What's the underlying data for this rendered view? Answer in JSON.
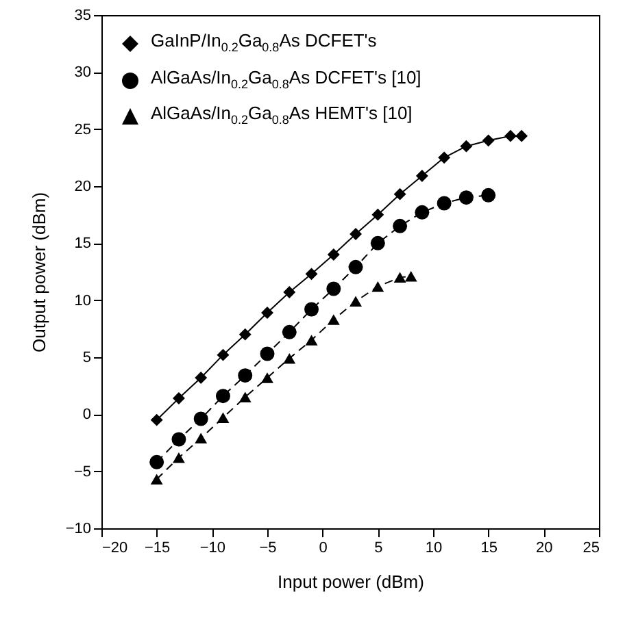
{
  "chart_data": {
    "type": "line",
    "xlabel": "Input power (dBm)",
    "ylabel": "Output power (dBm)",
    "xlim": [
      -20,
      25
    ],
    "xticks": [
      -20,
      -15,
      -10,
      -5,
      0,
      5,
      10,
      15,
      20,
      25
    ],
    "ylim": [
      -10,
      35
    ],
    "yticks": [
      -10,
      -5,
      0,
      5,
      10,
      15,
      20,
      25,
      30,
      35
    ],
    "grid": false,
    "legend": "top left",
    "series": [
      {
        "name": "GaInP/In$_{0.2}$Ga$_{0.8}$As DCFET's",
        "color": "#000000",
        "marker": "diamond",
        "line_style": "solid",
        "x": [
          -15,
          -13,
          -11,
          -9,
          -7,
          -5,
          -3,
          -1,
          1,
          3,
          5,
          7,
          9,
          11,
          13,
          15,
          17,
          18
        ],
        "values": [
          -0.5,
          1.4,
          3.2,
          5.2,
          7.0,
          8.9,
          10.7,
          12.3,
          14.0,
          15.8,
          17.5,
          19.3,
          20.9,
          22.5,
          23.5,
          24.0,
          24.4,
          24.4
        ]
      },
      {
        "name": "AlGaAs/In$_{0.2}$Ga$_{0.8}$As DCFET's [10]",
        "color": "#000000",
        "marker": "circle",
        "line_style": "dashed",
        "x": [
          -15,
          -13,
          -11,
          -9,
          -7,
          -5,
          -3,
          -1,
          1,
          3,
          5,
          7,
          9,
          11,
          13,
          15
        ],
        "values": [
          -4.2,
          -2.2,
          -0.4,
          1.6,
          3.4,
          5.3,
          7.2,
          9.2,
          11.0,
          12.9,
          15.0,
          16.5,
          17.7,
          18.5,
          19.0,
          19.2
        ]
      },
      {
        "name": "AlGaAs/In$_{0.2}$Ga$_{0.8}$As HEMT's [10]",
        "color": "#000000",
        "marker": "triangle",
        "line_style": "dashed",
        "x": [
          -15,
          -13,
          -11,
          -9,
          -7,
          -5,
          -3,
          -1,
          1,
          3,
          5,
          7,
          8
        ],
        "values": [
          -5.7,
          -3.8,
          -2.1,
          -0.3,
          1.5,
          3.2,
          4.9,
          6.5,
          8.3,
          9.9,
          11.2,
          12.0,
          12.1
        ]
      }
    ]
  }
}
